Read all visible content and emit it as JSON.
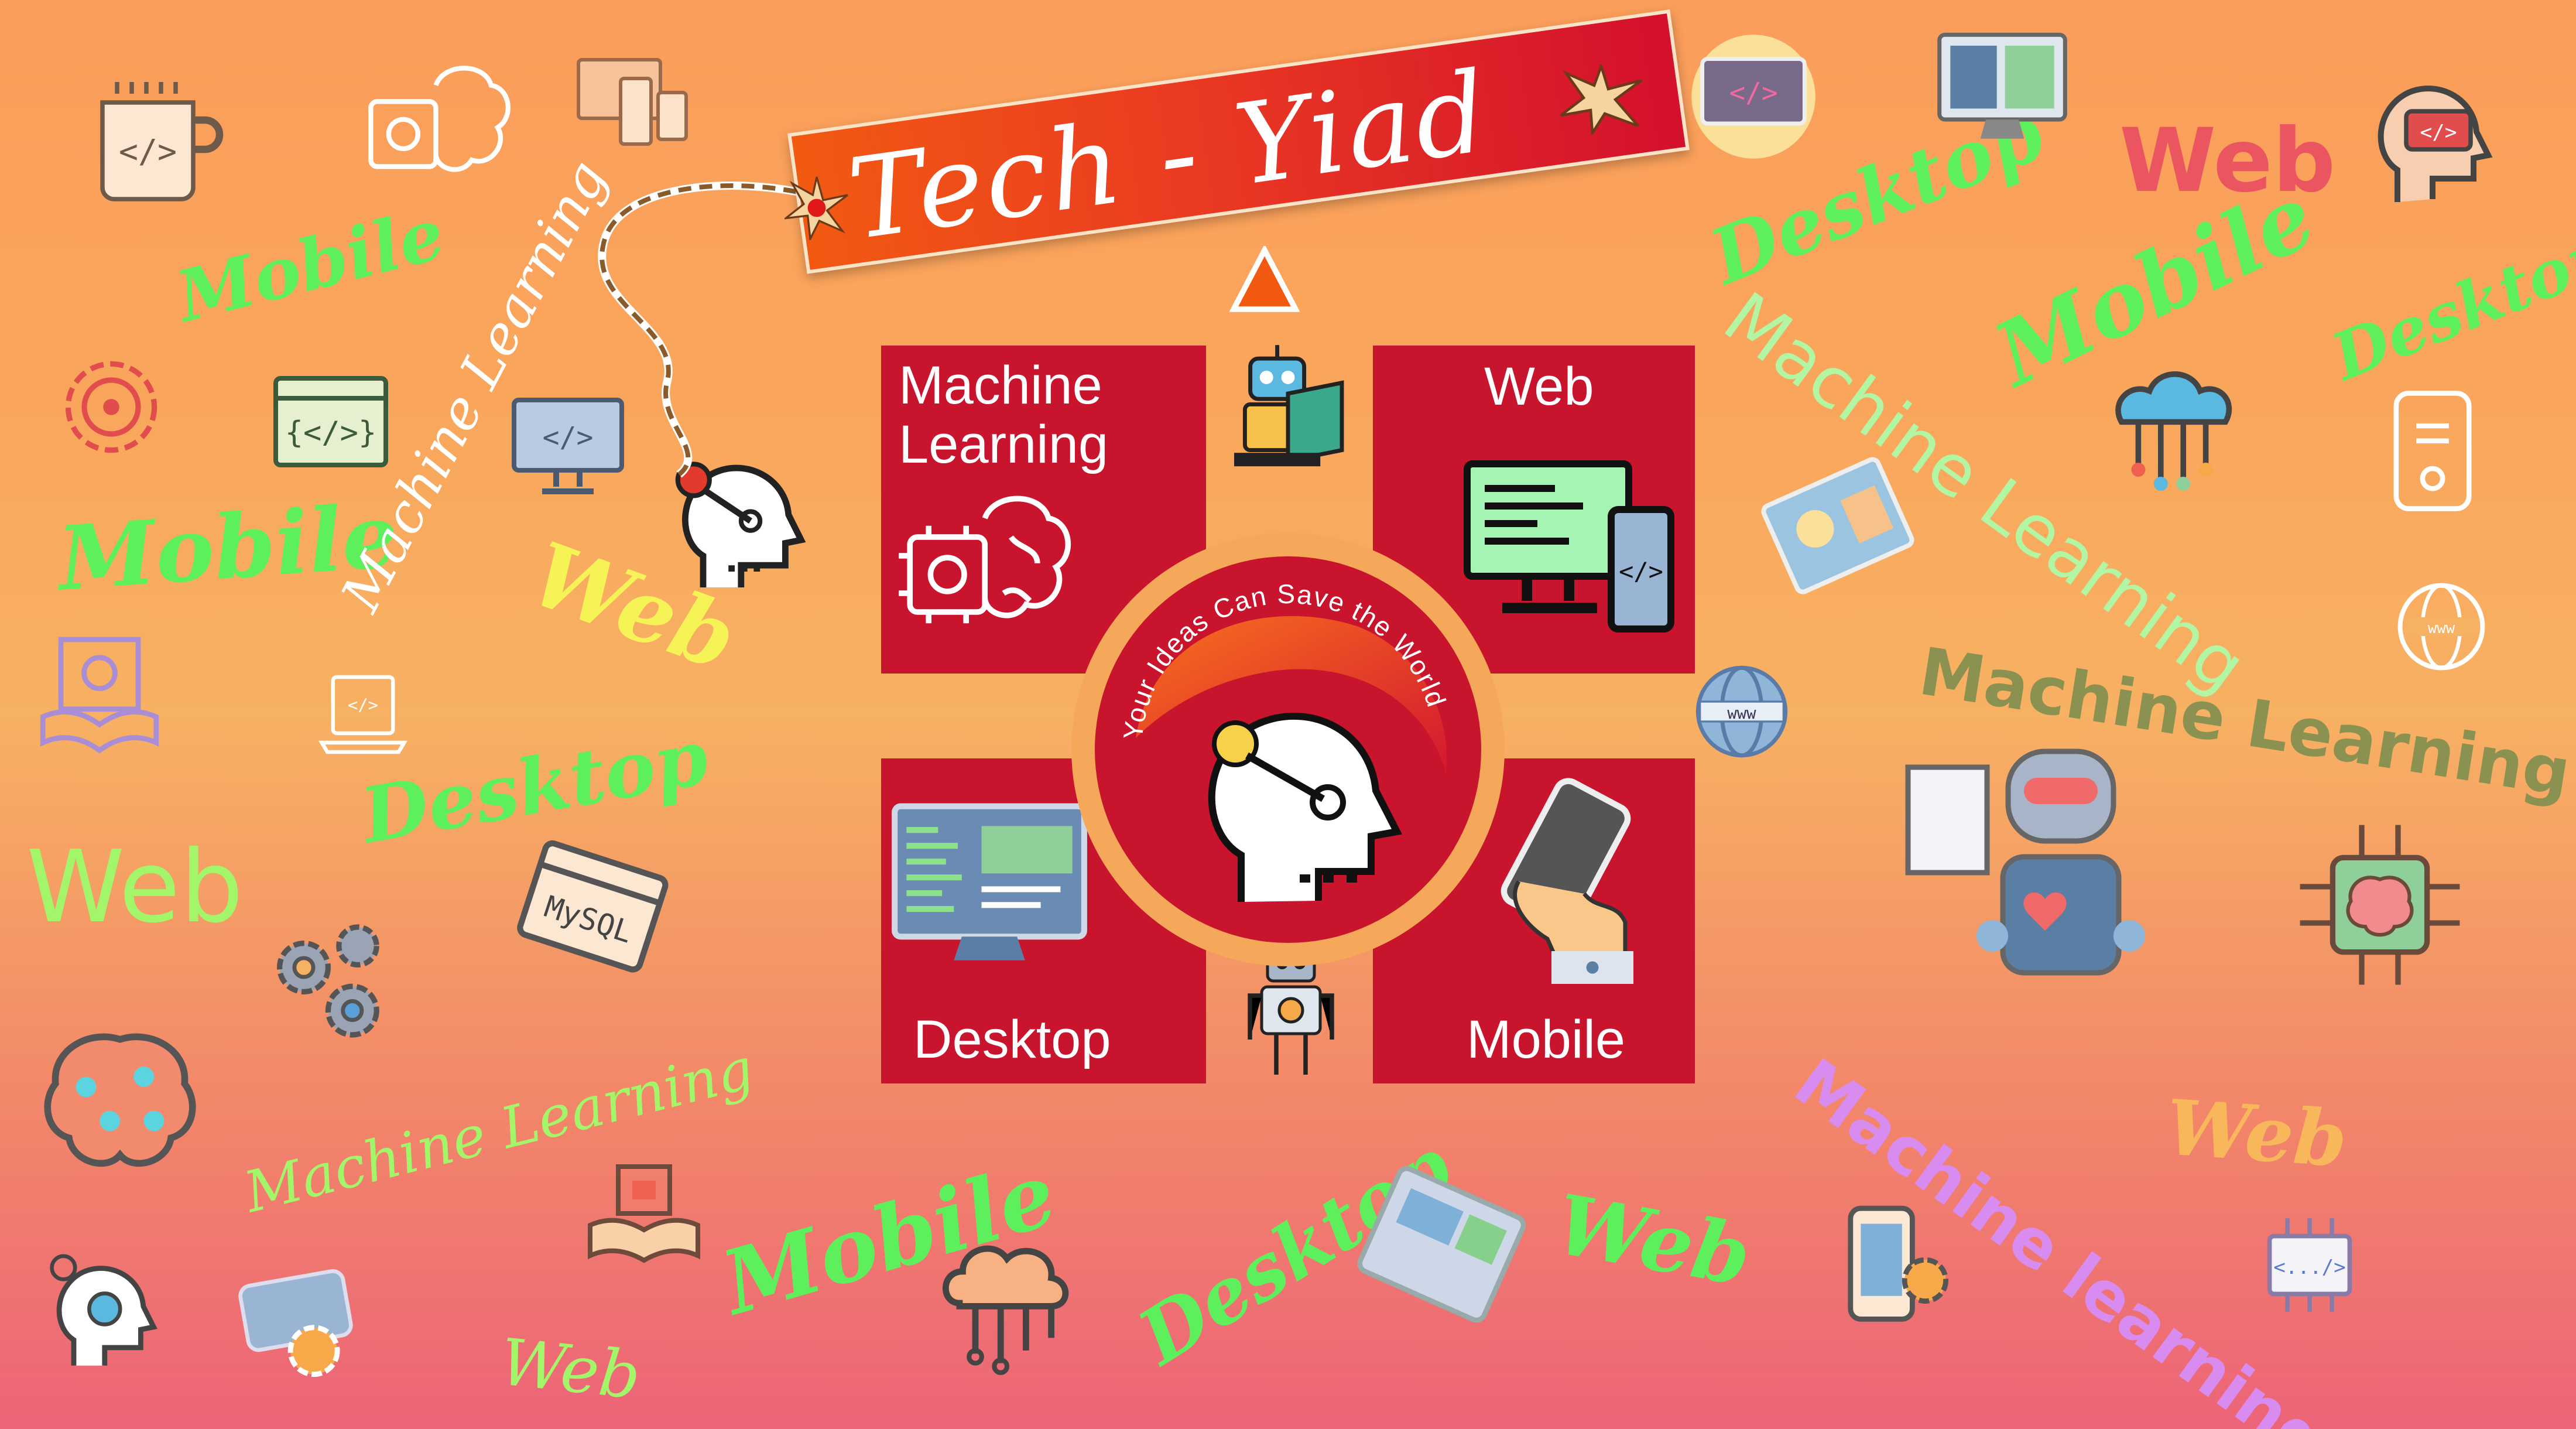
{
  "banner": {
    "title": "Tech - Yiad"
  },
  "center": {
    "slogan": "Your Ideas Can Save the World"
  },
  "tiles": {
    "machine_learning": "Machine\nLearning",
    "web": "Web",
    "desktop": "Desktop",
    "mobile": "Mobile"
  },
  "background_words": [
    "Mobile",
    "Mobile",
    "Machine Learning",
    "Web",
    "Desktop",
    "Web",
    "Machine Learning",
    "Mobile",
    "Web",
    "Desktop",
    "Web",
    "Desktop",
    "Machine Learning",
    "Mobile",
    "Desktop",
    "Machine Learning",
    "Machine learning",
    "Web"
  ],
  "icon_labels": {
    "mysql": "MySQL",
    "www": "www",
    "code_tag": "</>",
    "code_dots": "<.../>",
    "curly_code": "{</>}"
  },
  "colors": {
    "tile_red": "#c8142c",
    "banner_orange": "#f25a12",
    "banner_red": "#d3102d",
    "ring": "#f6a85a"
  }
}
